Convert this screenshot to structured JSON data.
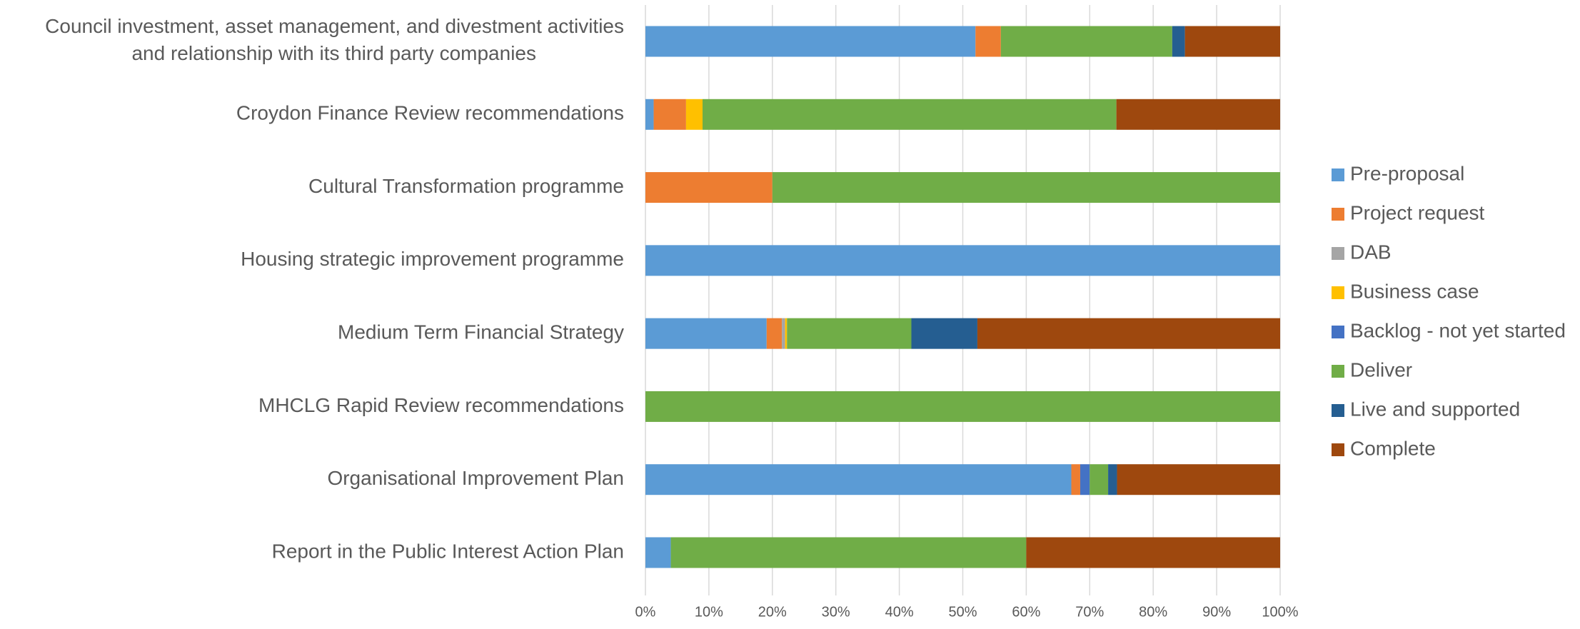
{
  "chart_data": {
    "type": "stacked_barh",
    "categories": [
      "Council investment, asset management, and divestment activities\nand relationship with its third party companies",
      "Croydon Finance Review recommendations",
      "Cultural Transformation programme",
      "Housing strategic improvement programme",
      "Medium Term Financial Strategy",
      "MHCLG Rapid Review recommendations",
      "Organisational Improvement Plan",
      "Report in the Public Interest Action Plan"
    ],
    "series": [
      {
        "name": "Pre-proposal",
        "color": "#5b9bd5",
        "values": [
          52,
          1.3,
          0,
          100,
          19.1,
          0,
          67.1,
          4
        ]
      },
      {
        "name": "Project request",
        "color": "#ed7d31",
        "values": [
          4,
          5.1,
          20,
          0,
          2.4,
          0,
          1.4,
          0
        ]
      },
      {
        "name": "DAB",
        "color": "#a5a5a5",
        "values": [
          0,
          0,
          0,
          0,
          0.5,
          0,
          0,
          0
        ]
      },
      {
        "name": "Business case",
        "color": "#ffc000",
        "values": [
          0,
          2.6,
          0,
          0,
          0.3,
          0,
          0,
          0
        ]
      },
      {
        "name": "Backlog - not yet started",
        "color": "#4472c4",
        "values": [
          0,
          0,
          0,
          0,
          0,
          0,
          1.5,
          0
        ]
      },
      {
        "name": "Deliver",
        "color": "#70ad47",
        "values": [
          27,
          65.2,
          80,
          0,
          19.6,
          100,
          2.9,
          56
        ]
      },
      {
        "name": "Live and supported",
        "color": "#255e91",
        "values": [
          2,
          0,
          0,
          0,
          10.4,
          0,
          1.4,
          0
        ]
      },
      {
        "name": "Complete",
        "color": "#9e480e",
        "values": [
          15,
          25.8,
          0,
          0,
          47.7,
          0,
          25.7,
          40
        ]
      }
    ],
    "xlim": [
      0,
      100
    ],
    "xticks": [
      {
        "value": 0,
        "label": "0%"
      },
      {
        "value": 10,
        "label": "10%"
      },
      {
        "value": 20,
        "label": "20%"
      },
      {
        "value": 30,
        "label": "30%"
      },
      {
        "value": 40,
        "label": "40%"
      },
      {
        "value": 50,
        "label": "50%"
      },
      {
        "value": 60,
        "label": "60%"
      },
      {
        "value": 70,
        "label": "70%"
      },
      {
        "value": 80,
        "label": "80%"
      },
      {
        "value": 90,
        "label": "90%"
      },
      {
        "value": 100,
        "label": "100%"
      }
    ],
    "grid": true,
    "legend": "right"
  }
}
